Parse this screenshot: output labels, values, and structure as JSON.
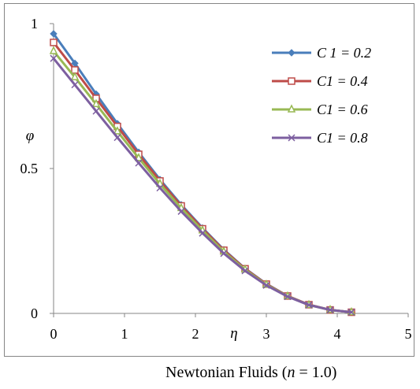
{
  "chart_data": {
    "type": "line",
    "xlabel": "η",
    "ylabel": "φ",
    "xlim": [
      0,
      5
    ],
    "ylim": [
      0,
      1
    ],
    "x_ticks": [
      "0",
      "1",
      "2",
      "3",
      "4",
      "5"
    ],
    "y_ticks": [
      "0",
      "0.5",
      "1"
    ],
    "legend_position": "top-right",
    "grid": false,
    "x": [
      0,
      0.3,
      0.6,
      0.9,
      1.2,
      1.5,
      1.8,
      2.1,
      2.4,
      2.7,
      3.0,
      3.3,
      3.6,
      3.9,
      4.2
    ],
    "series": [
      {
        "name": "C 1 = 0.2",
        "marker": "diamond",
        "color": "#4a7ebb",
        "values": [
          0.965,
          0.863,
          0.757,
          0.655,
          0.556,
          0.462,
          0.375,
          0.295,
          0.22,
          0.155,
          0.102,
          0.06,
          0.03,
          0.012,
          0.004
        ]
      },
      {
        "name": "C1 = 0.4",
        "marker": "square",
        "color": "#be4b48",
        "values": [
          0.935,
          0.84,
          0.742,
          0.645,
          0.549,
          0.457,
          0.371,
          0.292,
          0.218,
          0.154,
          0.101,
          0.06,
          0.03,
          0.012,
          0.004
        ]
      },
      {
        "name": "C1 = 0.6",
        "marker": "triangle",
        "color": "#98b954",
        "values": [
          0.905,
          0.815,
          0.722,
          0.628,
          0.536,
          0.447,
          0.363,
          0.286,
          0.213,
          0.151,
          0.099,
          0.059,
          0.029,
          0.012,
          0.004
        ]
      },
      {
        "name": "C1 = 0.8",
        "marker": "x",
        "color": "#7d5fa0",
        "values": [
          0.88,
          0.789,
          0.698,
          0.607,
          0.519,
          0.433,
          0.352,
          0.277,
          0.207,
          0.147,
          0.097,
          0.058,
          0.029,
          0.012,
          0.004
        ]
      }
    ]
  },
  "caption": {
    "prefix": "Newtonian Fluids (",
    "var": "n",
    "suffix": " = 1.0)"
  }
}
